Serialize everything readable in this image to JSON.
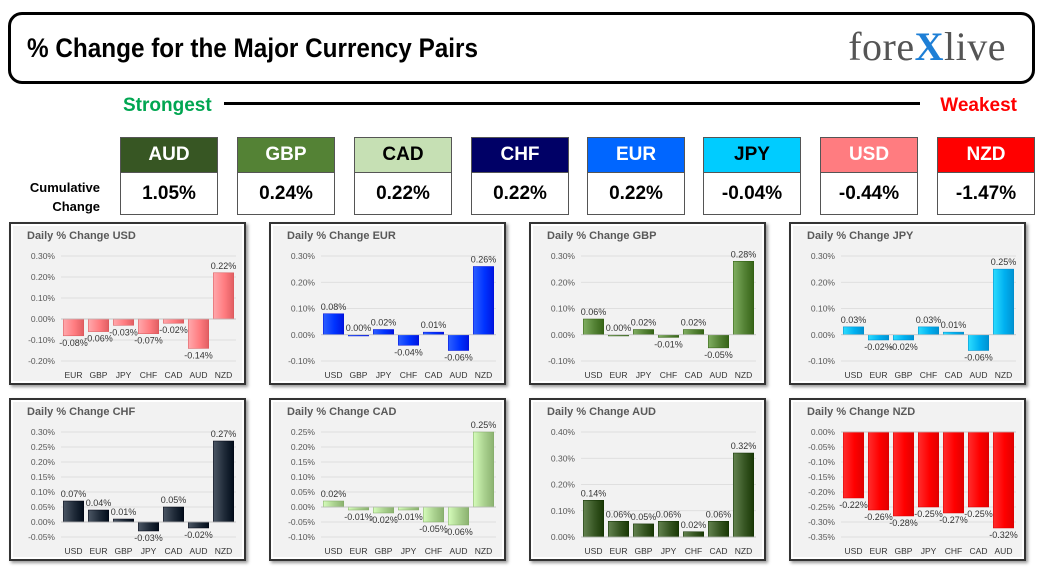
{
  "header": {
    "title": "% Change for the Major Currency Pairs",
    "logo_left": "fore",
    "logo_x": "X",
    "logo_right": "live"
  },
  "ranking": {
    "strongest_label": "Strongest",
    "weakest_label": "Weakest",
    "cumulative_label_line1": "Cumulative",
    "cumulative_label_line2": "Change",
    "currencies": [
      {
        "code": "AUD",
        "value": "1.05%",
        "bg": "#375623",
        "fg": "#ffffff"
      },
      {
        "code": "GBP",
        "value": "0.24%",
        "bg": "#548235",
        "fg": "#ffffff"
      },
      {
        "code": "CAD",
        "value": "0.22%",
        "bg": "#c6e0b4",
        "fg": "#000000"
      },
      {
        "code": "CHF",
        "value": "0.22%",
        "bg": "#000066",
        "fg": "#ffffff"
      },
      {
        "code": "EUR",
        "value": "0.22%",
        "bg": "#0066ff",
        "fg": "#ffffff"
      },
      {
        "code": "JPY",
        "value": "-0.04%",
        "bg": "#00ccff",
        "fg": "#000000"
      },
      {
        "code": "USD",
        "value": "-0.44%",
        "bg": "#ff7c80",
        "fg": "#ffffff"
      },
      {
        "code": "NZD",
        "value": "-1.47%",
        "bg": "#ff0000",
        "fg": "#ffffff"
      }
    ]
  },
  "chart_data": [
    {
      "type": "bar",
      "title": "Daily % Change USD",
      "categories": [
        "EUR",
        "GBP",
        "JPY",
        "CHF",
        "CAD",
        "AUD",
        "NZD"
      ],
      "values": [
        -0.08,
        -0.06,
        -0.03,
        -0.07,
        -0.02,
        -0.14,
        0.22
      ],
      "labels": [
        "-0.08%",
        "-0.06%",
        "-0.03%",
        "-0.07%",
        "-0.02%",
        "-0.14%",
        "0.22%"
      ],
      "ylim": [
        -0.2,
        0.3
      ],
      "ticks": [
        -0.2,
        -0.1,
        0.0,
        0.1,
        0.2,
        0.3
      ],
      "tick_labels": [
        "-0.20%",
        "-0.10%",
        "0.00%",
        "0.10%",
        "0.20%",
        "0.30%"
      ],
      "color": "#ff7c80"
    },
    {
      "type": "bar",
      "title": "Daily % Change EUR",
      "categories": [
        "USD",
        "GBP",
        "JPY",
        "CHF",
        "CAD",
        "AUD",
        "NZD"
      ],
      "values": [
        0.08,
        0.0,
        0.02,
        -0.04,
        0.01,
        -0.06,
        0.26
      ],
      "labels": [
        "0.08%",
        "0.00%",
        "0.02%",
        "-0.04%",
        "0.01%",
        "-0.06%",
        "0.26%"
      ],
      "ylim": [
        -0.1,
        0.3
      ],
      "ticks": [
        -0.1,
        0.0,
        0.1,
        0.2,
        0.3
      ],
      "tick_labels": [
        "-0.10%",
        "0.00%",
        "0.10%",
        "0.20%",
        "0.30%"
      ],
      "color": "#0033ff"
    },
    {
      "type": "bar",
      "title": "Daily % Change GBP",
      "categories": [
        "USD",
        "EUR",
        "JPY",
        "CHF",
        "CAD",
        "AUD",
        "NZD"
      ],
      "values": [
        0.06,
        0.0,
        0.02,
        -0.01,
        0.02,
        -0.05,
        0.28
      ],
      "labels": [
        "0.06%",
        "0.00%",
        "0.02%",
        "-0.01%",
        "0.02%",
        "-0.05%",
        "0.28%"
      ],
      "ylim": [
        -0.1,
        0.3
      ],
      "ticks": [
        -0.1,
        0.0,
        0.1,
        0.2,
        0.3
      ],
      "tick_labels": [
        "-0.10%",
        "0.00%",
        "0.10%",
        "0.20%",
        "0.30%"
      ],
      "color": "#548235"
    },
    {
      "type": "bar",
      "title": "Daily % Change JPY",
      "categories": [
        "USD",
        "EUR",
        "GBP",
        "CHF",
        "CAD",
        "AUD",
        "NZD"
      ],
      "values": [
        0.03,
        -0.02,
        -0.02,
        0.03,
        0.01,
        -0.06,
        0.25
      ],
      "labels": [
        "0.03%",
        "-0.02%",
        "-0.02%",
        "0.03%",
        "0.01%",
        "-0.06%",
        "0.25%"
      ],
      "ylim": [
        -0.1,
        0.3
      ],
      "ticks": [
        -0.1,
        0.0,
        0.1,
        0.2,
        0.3
      ],
      "tick_labels": [
        "-0.10%",
        "0.00%",
        "0.10%",
        "0.20%",
        "0.30%"
      ],
      "color": "#00b0f0"
    },
    {
      "type": "bar",
      "title": "Daily % Change CHF",
      "categories": [
        "USD",
        "EUR",
        "GBP",
        "JPY",
        "CAD",
        "AUD",
        "NZD"
      ],
      "values": [
        0.07,
        0.04,
        0.01,
        -0.03,
        0.05,
        -0.02,
        0.27
      ],
      "labels": [
        "0.07%",
        "0.04%",
        "0.01%",
        "-0.03%",
        "0.05%",
        "-0.02%",
        "0.27%"
      ],
      "ylim": [
        -0.05,
        0.3
      ],
      "ticks": [
        -0.05,
        0.0,
        0.05,
        0.1,
        0.15,
        0.2,
        0.25,
        0.3
      ],
      "tick_labels": [
        "-0.05%",
        "0.00%",
        "0.05%",
        "0.10%",
        "0.15%",
        "0.20%",
        "0.25%",
        "0.30%"
      ],
      "color": "#1f2a38"
    },
    {
      "type": "bar",
      "title": "Daily % Change CAD",
      "categories": [
        "USD",
        "EUR",
        "GBP",
        "JPY",
        "CHF",
        "AUD",
        "NZD"
      ],
      "values": [
        0.02,
        -0.01,
        -0.02,
        -0.01,
        -0.05,
        -0.06,
        0.25
      ],
      "labels": [
        "0.02%",
        "-0.01%",
        "-0.02%",
        "-0.01%",
        "-0.05%",
        "-0.06%",
        "0.25%"
      ],
      "ylim": [
        -0.1,
        0.25
      ],
      "ticks": [
        -0.1,
        -0.05,
        0.0,
        0.05,
        0.1,
        0.15,
        0.2,
        0.25
      ],
      "tick_labels": [
        "-0.10%",
        "-0.05%",
        "0.00%",
        "0.05%",
        "0.10%",
        "0.15%",
        "0.20%",
        "0.25%"
      ],
      "color": "#a9d08e"
    },
    {
      "type": "bar",
      "title": "Daily % Change AUD",
      "categories": [
        "USD",
        "EUR",
        "GBP",
        "JPY",
        "CHF",
        "CAD",
        "NZD"
      ],
      "values": [
        0.14,
        0.06,
        0.05,
        0.06,
        0.02,
        0.06,
        0.32
      ],
      "labels": [
        "0.14%",
        "0.06%",
        "0.05%",
        "0.06%",
        "0.02%",
        "0.06%",
        "0.32%"
      ],
      "ylim": [
        0.0,
        0.4
      ],
      "ticks": [
        0.0,
        0.1,
        0.2,
        0.3,
        0.4
      ],
      "tick_labels": [
        "0.00%",
        "0.10%",
        "0.20%",
        "0.30%",
        "0.40%"
      ],
      "color": "#375623"
    },
    {
      "type": "bar",
      "title": "Daily % Change NZD",
      "categories": [
        "USD",
        "EUR",
        "GBP",
        "JPY",
        "CHF",
        "CAD",
        "AUD"
      ],
      "values": [
        -0.22,
        -0.26,
        -0.28,
        -0.25,
        -0.27,
        -0.25,
        -0.32
      ],
      "labels": [
        "-0.22%",
        "-0.26%",
        "-0.28%",
        "-0.25%",
        "-0.27%",
        "-0.25%",
        "-0.32%"
      ],
      "ylim": [
        -0.35,
        0.0
      ],
      "ticks": [
        -0.35,
        -0.3,
        -0.25,
        -0.2,
        -0.15,
        -0.1,
        -0.05,
        0.0
      ],
      "tick_labels": [
        "-0.35%",
        "-0.30%",
        "-0.25%",
        "-0.20%",
        "-0.15%",
        "-0.10%",
        "-0.05%",
        "0.00%"
      ],
      "color": "#ff0000"
    }
  ]
}
